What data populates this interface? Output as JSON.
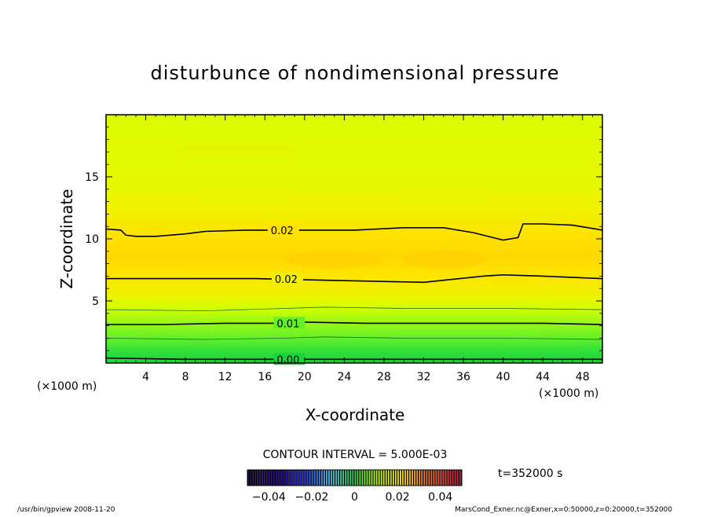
{
  "chart_data": {
    "type": "heatmap",
    "title": "disturbunce of nondimensional pressure",
    "xlabel": "X-coordinate",
    "ylabel": "Z-coordinate",
    "x_unit": "(×1000 m)",
    "y_unit": "(×1000 m)",
    "xlim": [
      0,
      50
    ],
    "ylim": [
      0,
      20
    ],
    "xticks": [
      4,
      8,
      12,
      16,
      20,
      24,
      28,
      32,
      36,
      40,
      44,
      48
    ],
    "yticks": [
      5,
      10,
      15
    ],
    "contour_interval_label": "CONTOUR INTERVAL = 5.000E-03",
    "time_label": "t=352000 s",
    "colorbar": {
      "range": [
        -0.05,
        0.05
      ],
      "ticks": [
        -0.04,
        -0.02,
        0,
        0.02,
        0.04
      ],
      "tick_labels": [
        "−0.04",
        "−0.02",
        "0",
        "0.02",
        "0.04"
      ]
    },
    "value_profile_by_z": [
      {
        "z": 0.0,
        "value": 0.0
      },
      {
        "z": 0.5,
        "value": 0.001
      },
      {
        "z": 1.0,
        "value": 0.003
      },
      {
        "z": 2.0,
        "value": 0.007
      },
      {
        "z": 3.0,
        "value": 0.01
      },
      {
        "z": 4.0,
        "value": 0.013
      },
      {
        "z": 5.0,
        "value": 0.016
      },
      {
        "z": 6.0,
        "value": 0.018
      },
      {
        "z": 7.0,
        "value": 0.02
      },
      {
        "z": 8.0,
        "value": 0.022
      },
      {
        "z": 9.0,
        "value": 0.021
      },
      {
        "z": 10.0,
        "value": 0.02
      },
      {
        "z": 11.0,
        "value": 0.019
      },
      {
        "z": 12.0,
        "value": 0.018
      },
      {
        "z": 14.0,
        "value": 0.017
      },
      {
        "z": 16.0,
        "value": 0.016
      },
      {
        "z": 18.0,
        "value": 0.015
      },
      {
        "z": 20.0,
        "value": 0.015
      }
    ],
    "contours": [
      {
        "label": "0.02",
        "label_x": 16.6,
        "points": [
          [
            0,
            10.8
          ],
          [
            1.5,
            10.7
          ],
          [
            2,
            10.3
          ],
          [
            3,
            10.2
          ],
          [
            5,
            10.2
          ],
          [
            8,
            10.4
          ],
          [
            10,
            10.6
          ],
          [
            14,
            10.7
          ],
          [
            20,
            10.7
          ],
          [
            25,
            10.7
          ],
          [
            30,
            10.9
          ],
          [
            34,
            10.9
          ],
          [
            37,
            10.5
          ],
          [
            40,
            9.9
          ],
          [
            41.5,
            10.1
          ],
          [
            42,
            11.2
          ],
          [
            44,
            11.2
          ],
          [
            47,
            11.1
          ],
          [
            50,
            10.7
          ]
        ]
      },
      {
        "label": "0.02",
        "label_x": 17.0,
        "points": [
          [
            0,
            6.8
          ],
          [
            6,
            6.8
          ],
          [
            12,
            6.8
          ],
          [
            15,
            6.8
          ],
          [
            20,
            6.7
          ],
          [
            26,
            6.6
          ],
          [
            32,
            6.5
          ],
          [
            38,
            7.0
          ],
          [
            40,
            7.1
          ],
          [
            44,
            7.0
          ],
          [
            50,
            6.8
          ]
        ]
      },
      {
        "label": "0.01",
        "label_x": 17.2,
        "points": [
          [
            0,
            3.1
          ],
          [
            6,
            3.1
          ],
          [
            12,
            3.2
          ],
          [
            18,
            3.2
          ],
          [
            20,
            3.3
          ],
          [
            26,
            3.2
          ],
          [
            32,
            3.2
          ],
          [
            38,
            3.2
          ],
          [
            44,
            3.2
          ],
          [
            50,
            3.1
          ]
        ]
      },
      {
        "label": "0.00",
        "label_x": 17.2,
        "points": [
          [
            0,
            0.4
          ],
          [
            8,
            0.3
          ],
          [
            16,
            0.3
          ],
          [
            20,
            0.3
          ],
          [
            28,
            0.3
          ],
          [
            36,
            0.3
          ],
          [
            44,
            0.3
          ],
          [
            50,
            0.3
          ]
        ]
      }
    ],
    "thin_contours": [
      {
        "points": [
          [
            0,
            4.3
          ],
          [
            10,
            4.2
          ],
          [
            18,
            4.4
          ],
          [
            22,
            4.5
          ],
          [
            30,
            4.4
          ],
          [
            40,
            4.4
          ],
          [
            50,
            4.3
          ]
        ]
      },
      {
        "points": [
          [
            0,
            2.0
          ],
          [
            10,
            1.9
          ],
          [
            18,
            2.0
          ],
          [
            22,
            2.1
          ],
          [
            30,
            2.0
          ],
          [
            40,
            2.0
          ],
          [
            50,
            1.9
          ]
        ]
      }
    ]
  },
  "footer": {
    "left": "/usr/bin/gpview   2008-11-20",
    "right": "MarsCond_Exner.nc@Exner,x=0:50000,z=0:20000,t=352000"
  },
  "colors": {
    "low": "#1ed23c",
    "mid": "#d2ff00",
    "high": "#ffd200"
  }
}
